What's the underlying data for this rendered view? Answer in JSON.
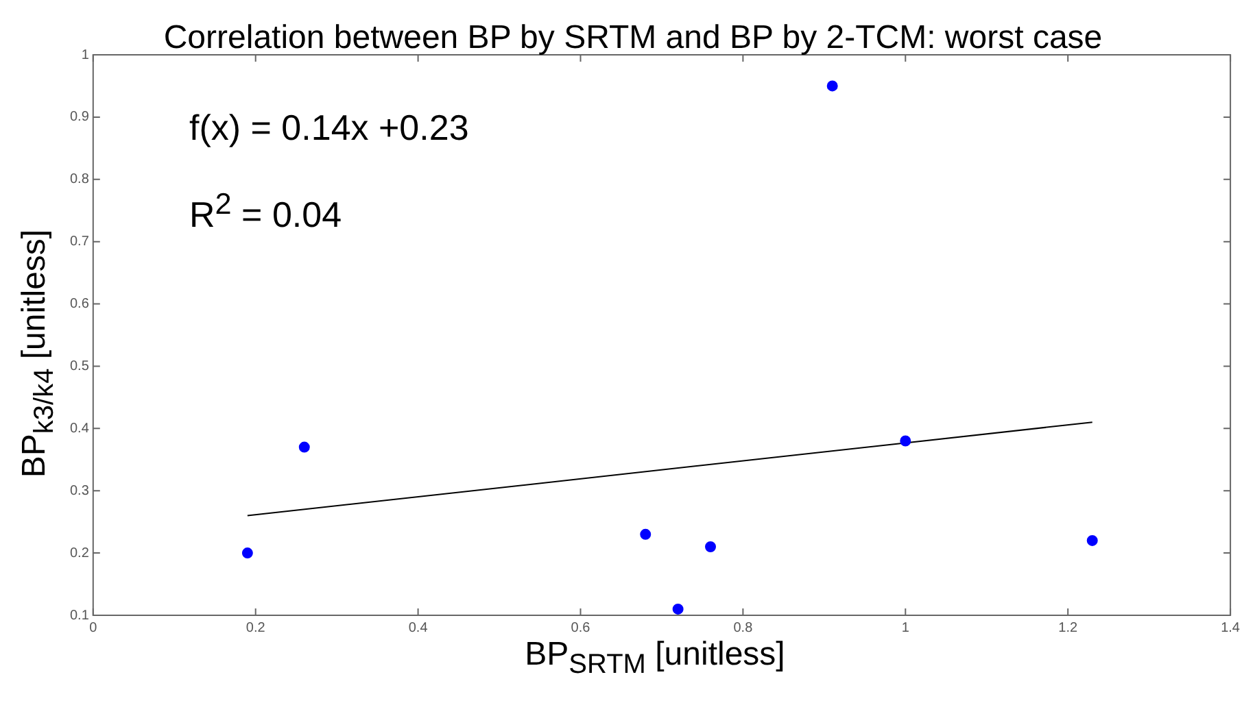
{
  "chart_data": {
    "type": "scatter",
    "title": "Correlation between BP by SRTM and BP by 2-TCM: worst case",
    "xlabel": "BP$_{SRTM}$ [unitless]",
    "ylabel": "BP$_{k3/k4}$ [unitless]",
    "annotations": [
      "f(x) = 0.14x +0.23",
      "R$^{2}$ = 0.04"
    ],
    "series": [
      {
        "color": "#0000ff",
        "marker": "circle",
        "x": [
          0.19,
          0.26,
          0.68,
          0.72,
          0.76,
          0.91,
          1.0,
          1.23
        ],
        "values": [
          0.2,
          0.37,
          0.23,
          0.11,
          0.21,
          0.95,
          0.38,
          0.22
        ]
      },
      {
        "type": "line",
        "color": "#000000",
        "marker": "none",
        "line_style": "solid",
        "x": [
          0.19,
          1.23
        ],
        "values": [
          0.26,
          0.41
        ]
      }
    ],
    "xlim": [
      0,
      1.4
    ],
    "xticks": [
      0,
      0.2,
      0.4,
      0.6,
      0.8,
      1,
      1.2,
      1.4
    ],
    "ylim": [
      0.1,
      1
    ],
    "yticks": [
      0.1,
      0.2,
      0.3,
      0.4,
      0.5,
      0.6,
      0.7,
      0.8,
      0.9,
      1
    ],
    "grid": false
  }
}
